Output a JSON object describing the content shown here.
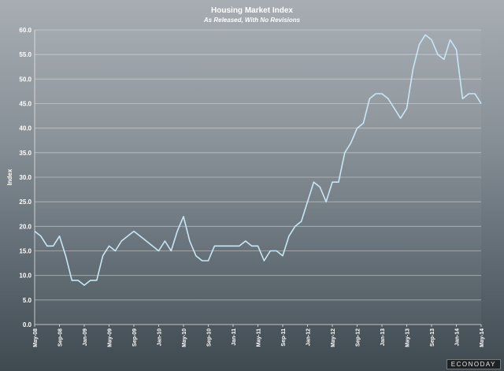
{
  "chart_data": {
    "type": "line",
    "title": "Housing Market Index",
    "subtitle": "As Released, With No Revisions",
    "xlabel": "",
    "ylabel": "Index",
    "ylim": [
      0,
      60
    ],
    "yticks": [
      "0.0",
      "5.0",
      "10.0",
      "15.0",
      "20.0",
      "25.0",
      "30.0",
      "35.0",
      "40.0",
      "45.0",
      "50.0",
      "55.0",
      "60.0"
    ],
    "xticks": [
      "May-08",
      "Sep-08",
      "Jan-09",
      "May-09",
      "Sep-09",
      "Jan-10",
      "May-10",
      "Sep-10",
      "Jan-11",
      "May-11",
      "Sep-11",
      "Jan-12",
      "May-12",
      "Sep-12",
      "Jan-13",
      "May-13",
      "Sep-13",
      "Jan-14",
      "May-14"
    ],
    "grid": true,
    "line_color": "#c9e6f5",
    "series": [
      {
        "values": [
          19,
          18,
          16,
          16,
          18,
          14,
          9,
          9,
          8,
          9,
          9,
          14,
          16,
          15,
          17,
          18,
          19,
          18,
          17,
          16,
          15,
          17,
          15,
          19,
          22,
          17,
          14,
          13,
          13,
          16,
          16,
          16,
          16,
          16,
          17,
          16,
          16,
          13,
          15,
          15,
          14,
          18,
          20,
          21,
          25,
          29,
          28,
          25,
          29,
          29,
          35,
          37,
          40,
          41,
          46,
          47,
          47,
          46,
          44,
          42,
          44,
          52,
          57,
          59,
          58,
          55,
          54,
          58,
          56,
          46,
          47,
          47,
          45
        ]
      }
    ]
  },
  "brand": "ECONODAY"
}
